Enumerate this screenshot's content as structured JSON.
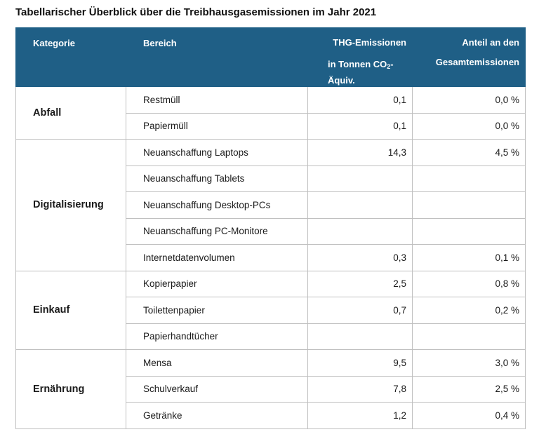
{
  "title": "Tabellarischer Überblick über die Treibhausgasemissionen im Jahr 2021",
  "header": {
    "category": "Kategorie",
    "area": "Bereich",
    "emissions_line1": "THG-Emissionen",
    "emissions_line2_pre": "in Tonnen CO",
    "emissions_line2_sub": "2",
    "emissions_line2_post": "-",
    "emissions_line3": "Äquiv.",
    "share_line1": "Anteil an den",
    "share_line2": "Gesamtemissionen"
  },
  "colors": {
    "header_background": "#1f5f86",
    "header_text": "#ffffff",
    "grid": "#bfbfbf"
  },
  "groups": [
    {
      "category": "Abfall",
      "rows": [
        {
          "area": "Restmüll",
          "emissions": "0,1",
          "share": "0,0 %"
        },
        {
          "area": "Papiermüll",
          "emissions": "0,1",
          "share": "0,0 %"
        }
      ]
    },
    {
      "category": "Digitalisierung",
      "rows": [
        {
          "area": "Neuanschaffung Laptops",
          "emissions": "14,3",
          "share": "4,5 %"
        },
        {
          "area": "Neuanschaffung Tablets",
          "emissions": "",
          "share": ""
        },
        {
          "area": "Neuanschaffung Desktop-PCs",
          "emissions": "",
          "share": ""
        },
        {
          "area": "Neuanschaffung PC-Monitore",
          "emissions": "",
          "share": ""
        },
        {
          "area": "Internetdatenvolumen",
          "emissions": "0,3",
          "share": "0,1 %"
        }
      ]
    },
    {
      "category": "Einkauf",
      "rows": [
        {
          "area": "Kopierpapier",
          "emissions": "2,5",
          "share": "0,8 %"
        },
        {
          "area": "Toilettenpapier",
          "emissions": "0,7",
          "share": "0,2 %"
        },
        {
          "area": "Papierhandtücher",
          "emissions": "",
          "share": ""
        }
      ]
    },
    {
      "category": "Ernährung",
      "rows": [
        {
          "area": "Mensa",
          "emissions": "9,5",
          "share": "3,0 %"
        },
        {
          "area": "Schulverkauf",
          "emissions": "7,8",
          "share": "2,5 %"
        },
        {
          "area": "Getränke",
          "emissions": "1,2",
          "share": "0,4 %"
        }
      ]
    }
  ]
}
